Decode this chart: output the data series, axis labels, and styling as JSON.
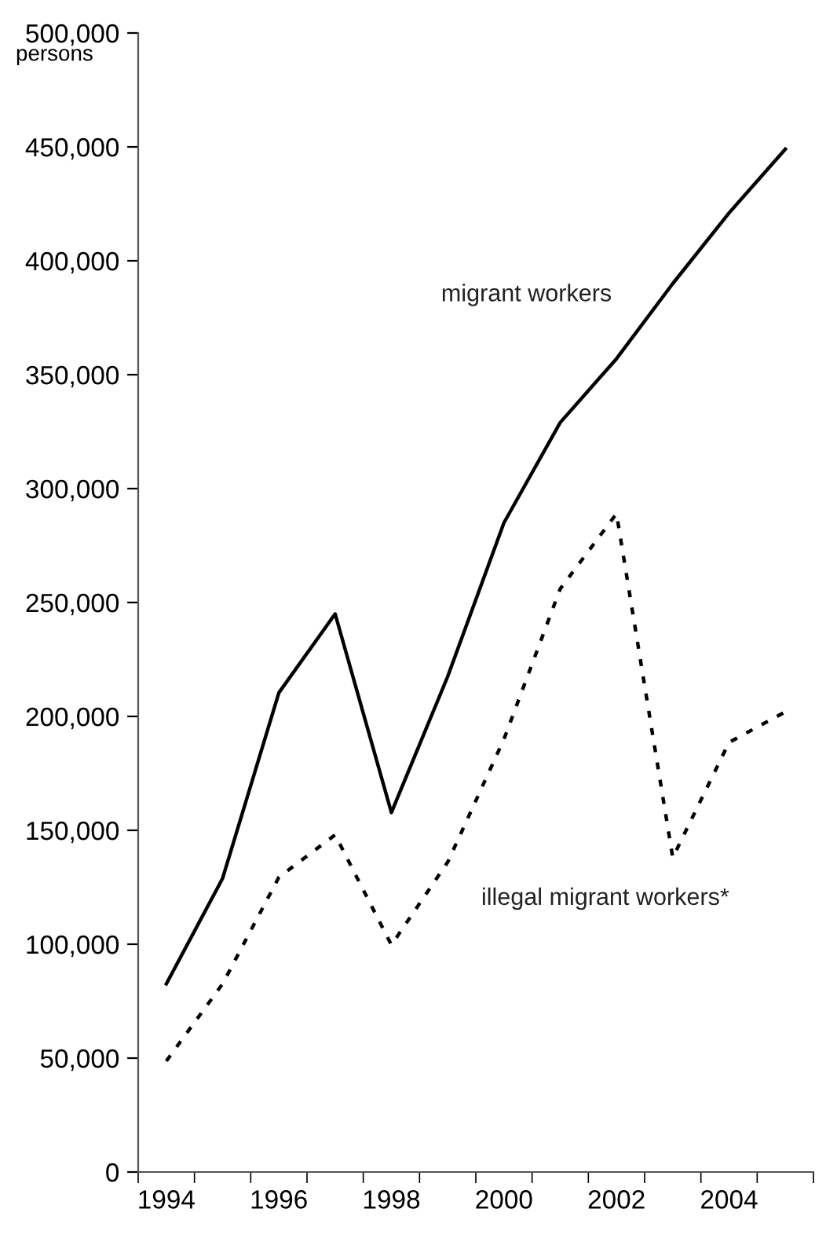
{
  "chart_data": {
    "type": "line",
    "ylabel": "persons",
    "categories": [
      "1994",
      null,
      "1996",
      null,
      "1998",
      null,
      "2000",
      null,
      "2002",
      null,
      "2004",
      null
    ],
    "series": [
      {
        "name": "migrant workers",
        "color": "#000000",
        "line_style": "solid",
        "values": [
          82600,
          128900,
          210400,
          245000,
          157800,
          217500,
          285000,
          329000,
          357000,
          390000,
          421000,
          449000
        ]
      },
      {
        "name": "illegal migrant workers*",
        "color": "#000000",
        "line_style": "dotted",
        "values": [
          48700,
          82600,
          129400,
          148000,
          99700,
          136000,
          190000,
          256000,
          289000,
          138000,
          188600,
          202000
        ]
      }
    ],
    "ylim": [
      0,
      500000
    ],
    "yticks": [
      {
        "value": 0,
        "label": "0"
      },
      {
        "value": 50000,
        "label": "50,000"
      },
      {
        "value": 100000,
        "label": "100,000"
      },
      {
        "value": 150000,
        "label": "150,000"
      },
      {
        "value": 200000,
        "label": "200,000"
      },
      {
        "value": 250000,
        "label": "250,000"
      },
      {
        "value": 300000,
        "label": "300,000"
      },
      {
        "value": 350000,
        "label": "350,000"
      },
      {
        "value": 400000,
        "label": "400,000"
      },
      {
        "value": 450000,
        "label": "450,000"
      },
      {
        "value": 500000,
        "label": "500,000"
      }
    ],
    "grid": false,
    "legend": false,
    "marker": "none"
  }
}
